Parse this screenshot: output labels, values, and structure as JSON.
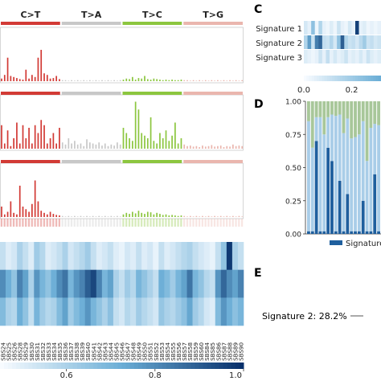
{
  "chart_data": [
    {
      "panel": "spectra",
      "type": "bar",
      "group_labels": [
        "C>T",
        "T>A",
        "T>C",
        "T>G"
      ],
      "colors": [
        "#d23a35",
        "#c8c8c8",
        "#8cc63f",
        "#eab6ae"
      ],
      "ylim": [
        0,
        1
      ],
      "rows": [
        {
          "values": [
            0.05,
            0.12,
            0.45,
            0.1,
            0.08,
            0.06,
            0.04,
            0.03,
            0.22,
            0.05,
            0.12,
            0.08,
            0.45,
            0.6,
            0.15,
            0.12,
            0.05,
            0.06,
            0.1,
            0.04,
            0.02,
            0.02,
            0.01,
            0.02,
            0.01,
            0.02,
            0.01,
            0.02,
            0.01,
            0.02,
            0.01,
            0.02,
            0.01,
            0.02,
            0.01,
            0.02,
            0.01,
            0.02,
            0.01,
            0.02,
            0.03,
            0.05,
            0.04,
            0.08,
            0.03,
            0.06,
            0.05,
            0.1,
            0.04,
            0.03,
            0.05,
            0.04,
            0.03,
            0.02,
            0.03,
            0.02,
            0.03,
            0.02,
            0.02,
            0.03,
            0.02,
            0.02,
            0.01,
            0.02,
            0.01,
            0.02,
            0.01,
            0.02,
            0.01,
            0.02,
            0.01,
            0.02,
            0.01,
            0.02,
            0.01,
            0.02,
            0.01,
            0.02,
            0.01,
            0.02
          ]
        },
        {
          "values": [
            0.45,
            0.1,
            0.35,
            0.05,
            0.2,
            0.5,
            0.1,
            0.45,
            0.2,
            0.4,
            0.1,
            0.45,
            0.3,
            0.55,
            0.45,
            0.1,
            0.2,
            0.3,
            0.1,
            0.4,
            0.12,
            0.08,
            0.2,
            0.1,
            0.15,
            0.08,
            0.1,
            0.05,
            0.18,
            0.12,
            0.1,
            0.08,
            0.12,
            0.06,
            0.1,
            0.05,
            0.08,
            0.06,
            0.12,
            0.08,
            0.4,
            0.3,
            0.2,
            0.15,
            0.9,
            0.75,
            0.3,
            0.25,
            0.2,
            0.6,
            0.15,
            0.1,
            0.3,
            0.2,
            0.35,
            0.15,
            0.25,
            0.5,
            0.1,
            0.2,
            0.08,
            0.05,
            0.06,
            0.04,
            0.05,
            0.03,
            0.06,
            0.04,
            0.05,
            0.07,
            0.04,
            0.05,
            0.06,
            0.03,
            0.05,
            0.04,
            0.08,
            0.05,
            0.06,
            0.05
          ]
        },
        {
          "values": [
            0.2,
            0.05,
            0.1,
            0.3,
            0.08,
            0.05,
            0.6,
            0.2,
            0.15,
            0.1,
            0.25,
            0.7,
            0.3,
            0.12,
            0.08,
            0.05,
            0.1,
            0.06,
            0.04,
            0.03,
            0.02,
            0.01,
            0.02,
            0.01,
            0.02,
            0.01,
            0.02,
            0.01,
            0.02,
            0.01,
            0.02,
            0.01,
            0.02,
            0.01,
            0.02,
            0.01,
            0.02,
            0.01,
            0.02,
            0.01,
            0.05,
            0.08,
            0.06,
            0.1,
            0.07,
            0.12,
            0.08,
            0.06,
            0.1,
            0.09,
            0.05,
            0.08,
            0.06,
            0.04,
            0.05,
            0.03,
            0.04,
            0.03,
            0.02,
            0.03,
            0.02,
            0.01,
            0.02,
            0.01,
            0.02,
            0.01,
            0.02,
            0.01,
            0.02,
            0.01,
            0.02,
            0.01,
            0.02,
            0.01,
            0.02,
            0.01,
            0.02,
            0.01,
            0.02,
            0.01
          ]
        }
      ]
    },
    {
      "panel": "cosine-heatmap",
      "type": "heatmap",
      "columns": [
        "SBS24",
        "SBS25",
        "SBS26",
        "SBS28",
        "SBS29",
        "SBS30",
        "SBS31",
        "SBS32",
        "SBS33",
        "SBS34",
        "SBS35",
        "SBS36",
        "SBS37",
        "SBS38",
        "SBS39",
        "SBS40",
        "SBS41",
        "SBS42",
        "SBS43",
        "SBS44",
        "SBS45",
        "SBS46",
        "SBS47",
        "SBS48",
        "SBS49",
        "SBS50",
        "SBS51",
        "SBS52",
        "SBS53",
        "SBS54",
        "SBS55",
        "SBS56",
        "SBS57",
        "SBS58",
        "SBS59",
        "SBS60",
        "SBS84",
        "SBS85",
        "SBS86",
        "SBS87",
        "SBS88",
        "SBS89",
        "SBS90"
      ],
      "colorbar_ticks": [
        "0.6",
        "0.8",
        "1.0"
      ],
      "colorbar_range": [
        0.45,
        1.0
      ],
      "matrix": [
        [
          0.55,
          0.5,
          0.52,
          0.6,
          0.55,
          0.5,
          0.62,
          0.58,
          0.5,
          0.52,
          0.55,
          0.6,
          0.52,
          0.55,
          0.58,
          0.62,
          0.55,
          0.5,
          0.52,
          0.55,
          0.5,
          0.48,
          0.52,
          0.5,
          0.55,
          0.5,
          0.52,
          0.48,
          0.55,
          0.5,
          0.52,
          0.55,
          0.58,
          0.6,
          0.55,
          0.52,
          0.5,
          0.48,
          0.55,
          0.65,
          0.98,
          0.6,
          0.55
        ],
        [
          0.8,
          0.72,
          0.65,
          0.82,
          0.75,
          0.6,
          0.78,
          0.7,
          0.65,
          0.72,
          0.8,
          0.85,
          0.7,
          0.78,
          0.82,
          0.9,
          0.95,
          0.82,
          0.7,
          0.75,
          0.6,
          0.55,
          0.62,
          0.58,
          0.7,
          0.65,
          0.6,
          0.55,
          0.72,
          0.68,
          0.62,
          0.7,
          0.75,
          0.85,
          0.7,
          0.65,
          0.58,
          0.55,
          0.78,
          0.88,
          0.8,
          0.75,
          0.82
        ],
        [
          0.68,
          0.6,
          0.58,
          0.72,
          0.65,
          0.55,
          0.7,
          0.62,
          0.58,
          0.6,
          0.68,
          0.75,
          0.62,
          0.68,
          0.72,
          0.78,
          0.7,
          0.65,
          0.6,
          0.66,
          0.55,
          0.52,
          0.58,
          0.55,
          0.62,
          0.58,
          0.55,
          0.52,
          0.64,
          0.6,
          0.58,
          0.62,
          0.66,
          0.74,
          0.62,
          0.58,
          0.52,
          0.5,
          0.68,
          0.78,
          0.72,
          0.66,
          0.7
        ]
      ]
    },
    {
      "panel": "C",
      "type": "heatmap",
      "rows": [
        "Signature 1",
        "Signature 2",
        "Signature 3"
      ],
      "colorbar_ticks": [
        "0.0",
        "0.2"
      ],
      "matrix": [
        [
          0.04,
          0.02,
          0.12,
          0.01,
          0.08,
          0.02,
          0.01,
          0.03,
          0.01,
          0.05,
          0.02,
          0.01,
          0.04,
          0.02,
          0.3,
          0.02,
          0.03,
          0.01,
          0.02,
          0.01,
          0.02
        ],
        [
          0.08,
          0.18,
          0.05,
          0.22,
          0.25,
          0.06,
          0.05,
          0.08,
          0.04,
          0.12,
          0.26,
          0.08,
          0.05,
          0.06,
          0.04,
          0.07,
          0.1,
          0.05,
          0.06,
          0.04,
          0.05
        ],
        [
          0.03,
          0.02,
          0.01,
          0.02,
          0.05,
          0.02,
          0.06,
          0.02,
          0.04,
          0.02,
          0.03,
          0.05,
          0.02,
          0.03,
          0.02,
          0.04,
          0.02,
          0.05,
          0.03,
          0.02,
          0.03
        ]
      ]
    },
    {
      "panel": "D",
      "type": "bar",
      "stacked": true,
      "ylim": [
        0,
        1
      ],
      "yticks": [
        "0.00",
        "0.25",
        "0.50",
        "0.75",
        "1.00"
      ],
      "legend": [
        "Signature"
      ],
      "series": [
        {
          "color": "#1f5f9e",
          "values": [
            0.02,
            0.02,
            0.7,
            0.02,
            0.02,
            0.65,
            0.55,
            0.02,
            0.4,
            0.02,
            0.3,
            0.02,
            0.02,
            0.02,
            0.25,
            0.02,
            0.02,
            0.45,
            0.02
          ]
        },
        {
          "color": "#a9cde8",
          "values": [
            0.83,
            0.63,
            0.18,
            0.86,
            0.73,
            0.23,
            0.35,
            0.87,
            0.5,
            0.74,
            0.57,
            0.7,
            0.71,
            0.73,
            0.6,
            0.53,
            0.78,
            0.38,
            0.8
          ]
        },
        {
          "color": "#a8c79a",
          "values": [
            0.15,
            0.35,
            0.12,
            0.12,
            0.25,
            0.12,
            0.1,
            0.11,
            0.1,
            0.24,
            0.13,
            0.28,
            0.27,
            0.25,
            0.15,
            0.45,
            0.2,
            0.17,
            0.18
          ]
        }
      ]
    }
  ],
  "labels": {
    "panel_C": "C",
    "panel_D": "D",
    "panel_E": "E",
    "pie_label": "Signature 2: 28.2%"
  }
}
